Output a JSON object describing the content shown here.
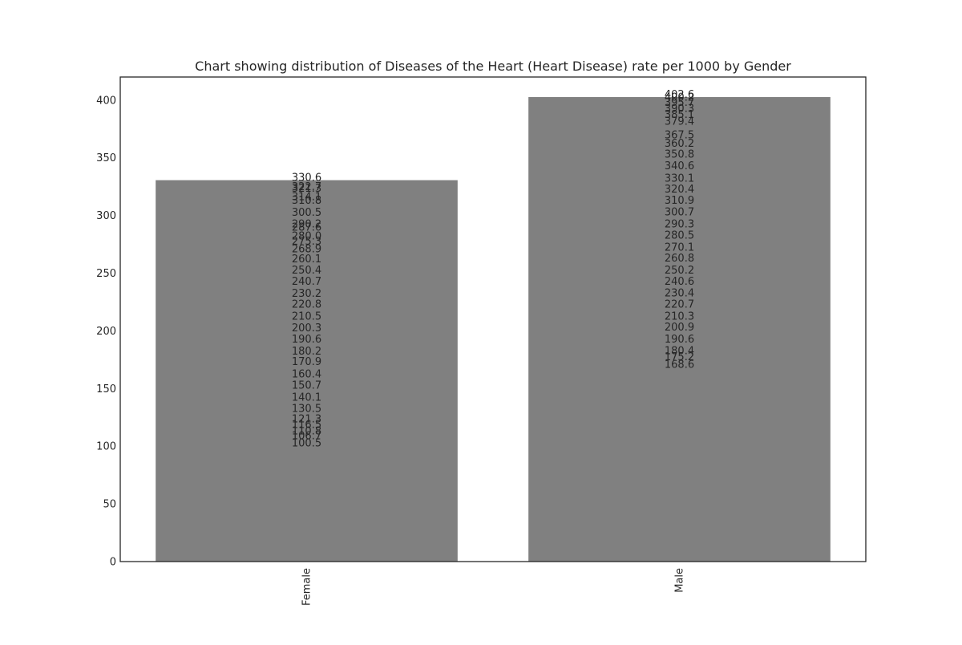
{
  "chart_data": {
    "type": "bar",
    "title": "Chart showing distribution of Diseases of the Heart (Heart Disease) rate per 1000 by Gender",
    "xlabel": "",
    "ylabel": "",
    "categories": [
      "Female",
      "Male"
    ],
    "values": [
      330.6,
      402.6
    ],
    "ylim": [
      0,
      420
    ],
    "yticks": [
      0,
      50,
      100,
      150,
      200,
      250,
      300,
      350,
      400
    ],
    "grid": false,
    "legend": "none",
    "bar_color": "#808080",
    "data_labels": [
      [
        "330.6",
        "322.7",
        "321.3",
        "314.1",
        "310.8",
        "300.5",
        "290.2",
        "287.6",
        "280.0",
        "275.3",
        "268.9",
        "260.1",
        "250.4",
        "240.7",
        "230.2",
        "220.8",
        "210.5",
        "200.3",
        "190.6",
        "180.2",
        "170.9",
        "160.4",
        "150.7",
        "140.1",
        "130.5",
        "121.3",
        "116.5",
        "110.8",
        "106.7",
        "100.5"
      ],
      [
        "402.6",
        "400.2",
        "395.7",
        "390.3",
        "385.1",
        "379.4",
        "367.5",
        "360.2",
        "350.8",
        "340.6",
        "330.1",
        "320.4",
        "310.9",
        "300.7",
        "290.3",
        "280.5",
        "270.1",
        "260.8",
        "250.2",
        "240.6",
        "230.4",
        "220.7",
        "210.3",
        "200.9",
        "190.6",
        "180.4",
        "175.2",
        "168.6"
      ]
    ]
  }
}
